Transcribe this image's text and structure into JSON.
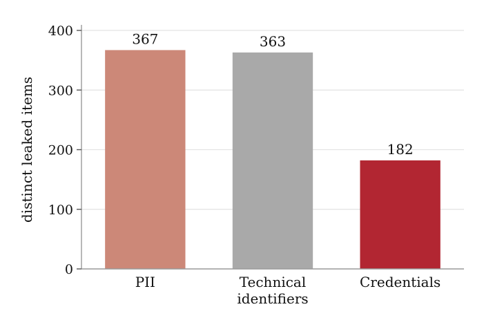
{
  "chart_data": {
    "type": "bar",
    "categories": [
      "PII",
      "Technical identifiers",
      "Credentials"
    ],
    "category_lines": [
      [
        "PII"
      ],
      [
        "Technical",
        "identifiers"
      ],
      [
        "Credentials"
      ]
    ],
    "values": [
      367,
      363,
      182
    ],
    "value_labels": [
      "367",
      "363",
      "182"
    ],
    "colors": [
      "#cc8878",
      "#a9a9a9",
      "#b22632"
    ],
    "title": "",
    "xlabel": "",
    "ylabel": "distinct leaked items",
    "ylim": [
      0,
      400
    ],
    "yticks": [
      0,
      100,
      200,
      300,
      400
    ],
    "ytick_labels": [
      "0",
      "100",
      "200",
      "300",
      "400"
    ],
    "grid": true
  }
}
